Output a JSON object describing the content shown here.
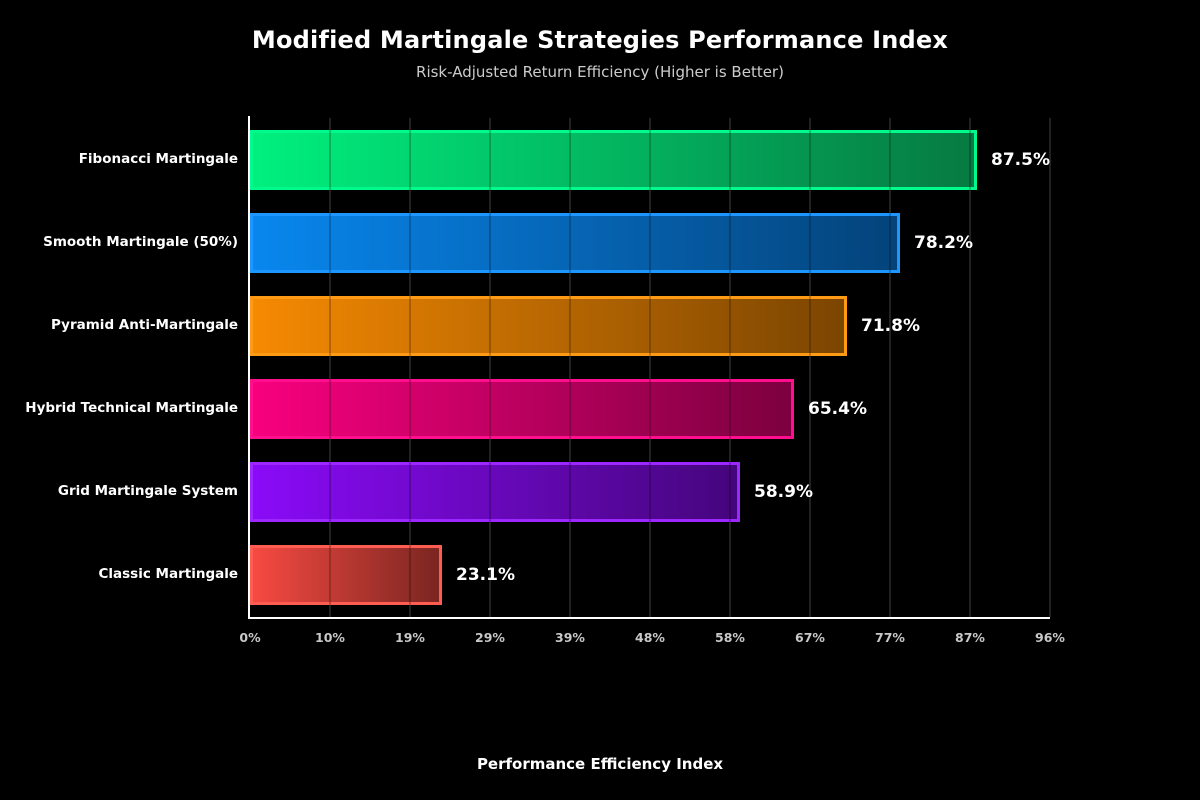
{
  "page": {
    "background": "#000000"
  },
  "header": {
    "title": "Modified Martingale Strategies Performance Index",
    "subtitle": "Risk-Adjusted Return Efficiency (Higher is Better)"
  },
  "chart_data": {
    "type": "bar",
    "orientation": "horizontal",
    "title": "Modified Martingale Strategies Performance Index",
    "subtitle": "Risk-Adjusted Return Efficiency (Higher is Better)",
    "xlabel": "Performance Efficiency Index",
    "ylabel": "",
    "xlim": [
      0,
      96.25
    ],
    "grid": true,
    "grid_color": "#2b2b2b",
    "axis_spine_color": "#ffffff",
    "tick_label_color": "#c8c8c8",
    "value_label_color": "#ffffff",
    "x_tick_labels": [
      "0%",
      "10%",
      "19%",
      "29%",
      "39%",
      "48%",
      "58%",
      "67%",
      "77%",
      "87%",
      "96%"
    ],
    "x_tick_values": [
      0,
      9.625,
      19.25,
      28.875,
      38.5,
      48.125,
      57.75,
      67.375,
      77.0,
      86.625,
      96.25
    ],
    "categories": [
      "Fibonacci Martingale",
      "Smooth Martingale (50%)",
      "Pyramid Anti-Martingale",
      "Hybrid Technical Martingale",
      "Grid Martingale System",
      "Classic Martingale"
    ],
    "values": [
      87.5,
      78.2,
      71.8,
      65.4,
      58.9,
      23.1
    ],
    "value_labels": [
      "87.5%",
      "78.2%",
      "71.8%",
      "65.4%",
      "58.9%",
      "23.1%"
    ],
    "bar_colors": [
      {
        "start": "#00f07e",
        "end": "#067a42",
        "border": "#00fa8c"
      },
      {
        "start": "#0887ee",
        "end": "#04437a",
        "border": "#1e96ff"
      },
      {
        "start": "#f68a02",
        "end": "#7b4501",
        "border": "#ff9a14"
      },
      {
        "start": "#f8007e",
        "end": "#7c003f",
        "border": "#ff0f8d"
      },
      {
        "start": "#8a0bf8",
        "end": "#45057c",
        "border": "#9c27ff"
      },
      {
        "start": "#f64a42",
        "end": "#7b2521",
        "border": "#ff5c52"
      }
    ],
    "legend": null
  }
}
